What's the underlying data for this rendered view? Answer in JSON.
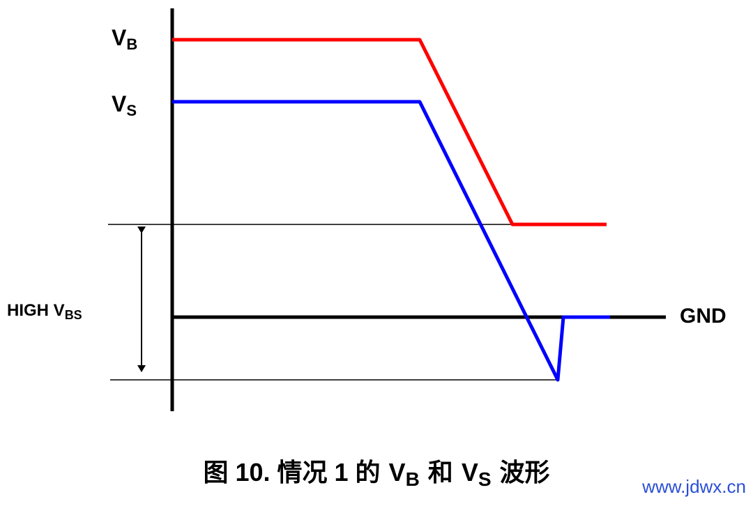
{
  "labels": {
    "vb": {
      "main": "V",
      "sub": "B"
    },
    "vs": {
      "main": "V",
      "sub": "S"
    },
    "high_vbs": {
      "main": "HIGH V",
      "sub": "BS"
    },
    "gnd": "GND"
  },
  "caption": [
    "图 10. 情况 1 的",
    "V",
    "B",
    "和",
    "V",
    "S",
    "波形"
  ],
  "watermark": "www.jdwx.cn"
}
